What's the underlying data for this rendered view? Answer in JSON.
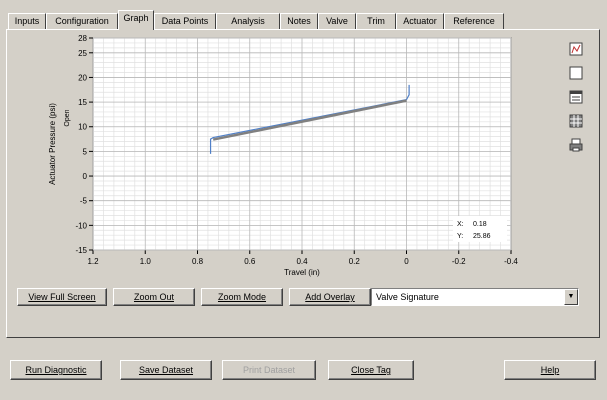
{
  "tabs": [
    {
      "label": "Inputs",
      "active": false
    },
    {
      "label": "Configuration",
      "active": false
    },
    {
      "label": "Graph",
      "active": true
    },
    {
      "label": "Data Points",
      "active": false
    },
    {
      "label": "Analysis",
      "active": false
    },
    {
      "label": "Notes",
      "active": false
    },
    {
      "label": "Valve",
      "active": false
    },
    {
      "label": "Trim",
      "active": false
    },
    {
      "label": "Actuator",
      "active": false
    },
    {
      "label": "Reference",
      "active": false
    }
  ],
  "chart_data": {
    "type": "line",
    "xlabel": "Travel (in)",
    "ylabel": "Actuator Pressure (psi)",
    "y2label": "Open",
    "xlim": [
      1.2,
      -0.4
    ],
    "ylim": [
      -15,
      28
    ],
    "x_ticks": [
      "1.2",
      "1.0",
      "0.8",
      "0.6",
      "0.4",
      "0.2",
      "0",
      "-0.2",
      "-0.4"
    ],
    "y_ticks": [
      "28",
      "25",
      "20",
      "15",
      "10",
      "5",
      "0",
      "-5",
      "-10",
      "-15"
    ],
    "grid": true,
    "series": [
      {
        "values_x": [
          0.75,
          0.75,
          0.74,
          0.0,
          -0.01,
          -0.01
        ],
        "values_y": [
          4.5,
          7.5,
          7.8,
          15.5,
          16.5,
          18.5
        ],
        "color": "#5080c8"
      },
      {
        "values_x": [
          0.74,
          0.0
        ],
        "values_y": [
          7.4,
          15.3
        ],
        "color": "#808080"
      }
    ],
    "readout": {
      "x_label": "X:",
      "x_value": "0.18",
      "y_label": "Y:",
      "y_value": "25.86"
    }
  },
  "buttons": {
    "view_full_screen": "View Full Screen",
    "zoom_out": "Zoom Out",
    "zoom_mode": "Zoom Mode",
    "add_overlay": "Add Overlay"
  },
  "graph_type_select": {
    "value": "Valve Signature"
  },
  "bottom_buttons": {
    "run_diagnostic": "Run Diagnostic",
    "save_dataset": "Save Dataset",
    "print_dataset": "Print Dataset",
    "close_tag": "Close Tag",
    "help": "Help"
  },
  "side_icons": [
    "chart-select-icon",
    "blank-icon",
    "table-icon",
    "grid-icon",
    "print-icon"
  ]
}
